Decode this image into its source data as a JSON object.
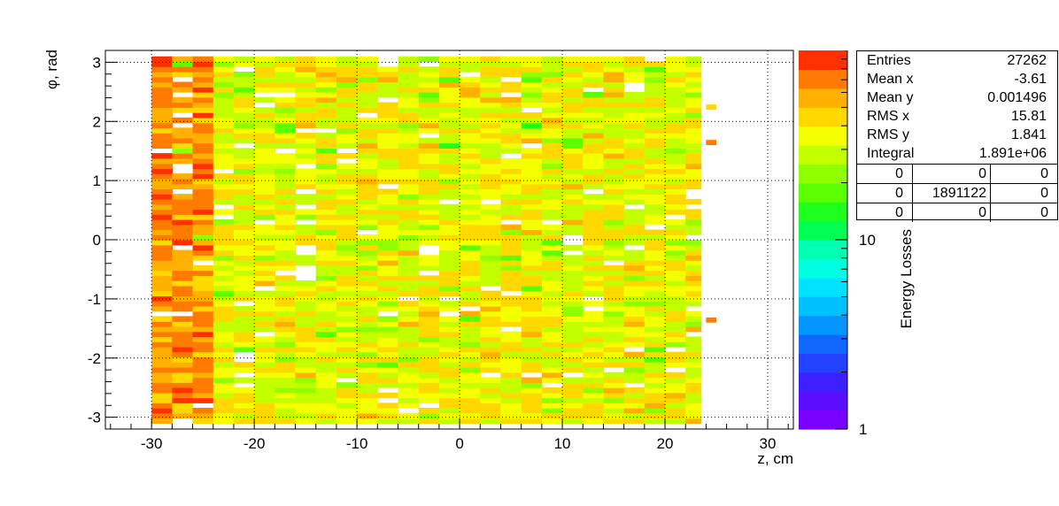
{
  "chart_data": {
    "type": "heatmap",
    "title": "",
    "xlabel": "z, cm",
    "ylabel": "φ, rad",
    "zlabel": "Energy Losses",
    "xlim": [
      -34.5,
      32.5
    ],
    "ylim": [
      -3.2,
      3.2
    ],
    "x_ticks": [
      -30,
      -20,
      -10,
      0,
      10,
      20,
      30
    ],
    "y_ticks": [
      -3,
      -2,
      -1,
      0,
      1,
      2,
      3
    ],
    "z_scale": "log",
    "zlim": [
      1,
      100
    ],
    "z_ticks": [
      {
        "value": 1,
        "label": "1"
      },
      {
        "value": 10,
        "label": "10"
      }
    ],
    "grid": true,
    "z_ranges": [
      {
        "range": [
          -30,
          -24
        ],
        "level_mean": 0.92
      },
      {
        "range": [
          -24,
          23.5
        ],
        "level_mean": 0.8
      }
    ],
    "y_range_filled": [
      -3.1,
      3.1
    ],
    "outliers": [
      {
        "z": 24,
        "phi": 2.2,
        "level": 0.87
      },
      {
        "z": 24,
        "phi": 1.6,
        "level": 0.96
      },
      {
        "z": 24,
        "phi": -1.4,
        "level": 0.96
      }
    ],
    "palette_levels": 20,
    "palette": [
      "#7a00ff",
      "#5a0dff",
      "#3c20ff",
      "#2342ff",
      "#1068ff",
      "#0495ff",
      "#00c0ff",
      "#00e2ff",
      "#00ffe0",
      "#00ffb0",
      "#00ff80",
      "#00ff50",
      "#1eff1e",
      "#5aff00",
      "#90ff00",
      "#c4ff00",
      "#f4ff00",
      "#ffd800",
      "#ffb000",
      "#ff7a00",
      "#ff3000"
    ]
  },
  "stats": {
    "rows": [
      {
        "label": "Entries",
        "value": "27262"
      },
      {
        "label": "Mean x",
        "value": "-3.61"
      },
      {
        "label": "Mean y",
        "value": "0.001496"
      },
      {
        "label": "RMS x",
        "value": "15.81"
      },
      {
        "label": "RMS y",
        "value": "1.841"
      },
      {
        "label": "Integral",
        "value": "1.891e+06"
      }
    ],
    "overflow_grid": [
      [
        "0",
        "0",
        "0"
      ],
      [
        "0",
        "1891122",
        "0"
      ],
      [
        "0",
        "0",
        "0"
      ]
    ]
  }
}
